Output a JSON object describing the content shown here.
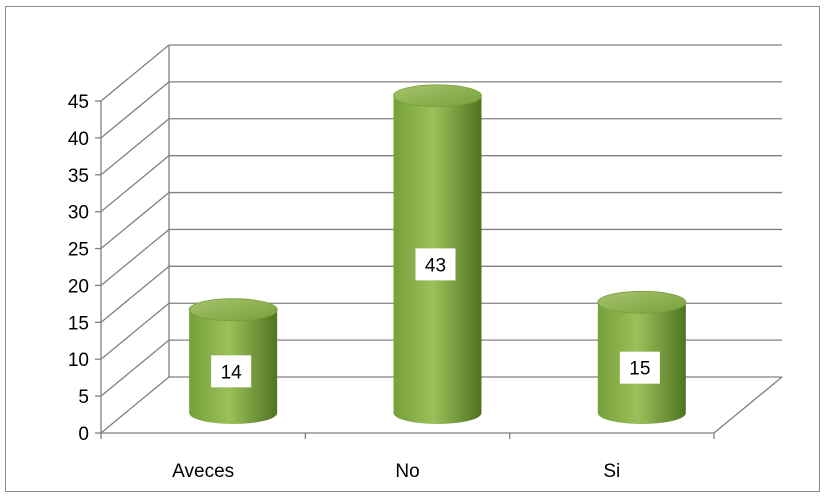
{
  "chart_data": {
    "type": "bar",
    "style": "3d-cylinder",
    "categories": [
      "Aveces",
      "No",
      "Si"
    ],
    "values": [
      14,
      43,
      15
    ],
    "data_labels": [
      "14",
      "43",
      "15"
    ],
    "ylim": [
      0,
      45
    ],
    "yticks": [
      0,
      5,
      10,
      15,
      20,
      25,
      30,
      35,
      40,
      45
    ],
    "ytick_labels": [
      "0",
      "5",
      "10",
      "15",
      "20",
      "25",
      "30",
      "35",
      "40",
      "45"
    ],
    "grid": true,
    "legend": "none",
    "colors": {
      "bar_light": "#9bc05a",
      "bar_mid": "#76a03a",
      "bar_dark": "#4f7421",
      "bar_top": "#a7c46e",
      "grid": "#808080",
      "axis": "#808080"
    }
  }
}
